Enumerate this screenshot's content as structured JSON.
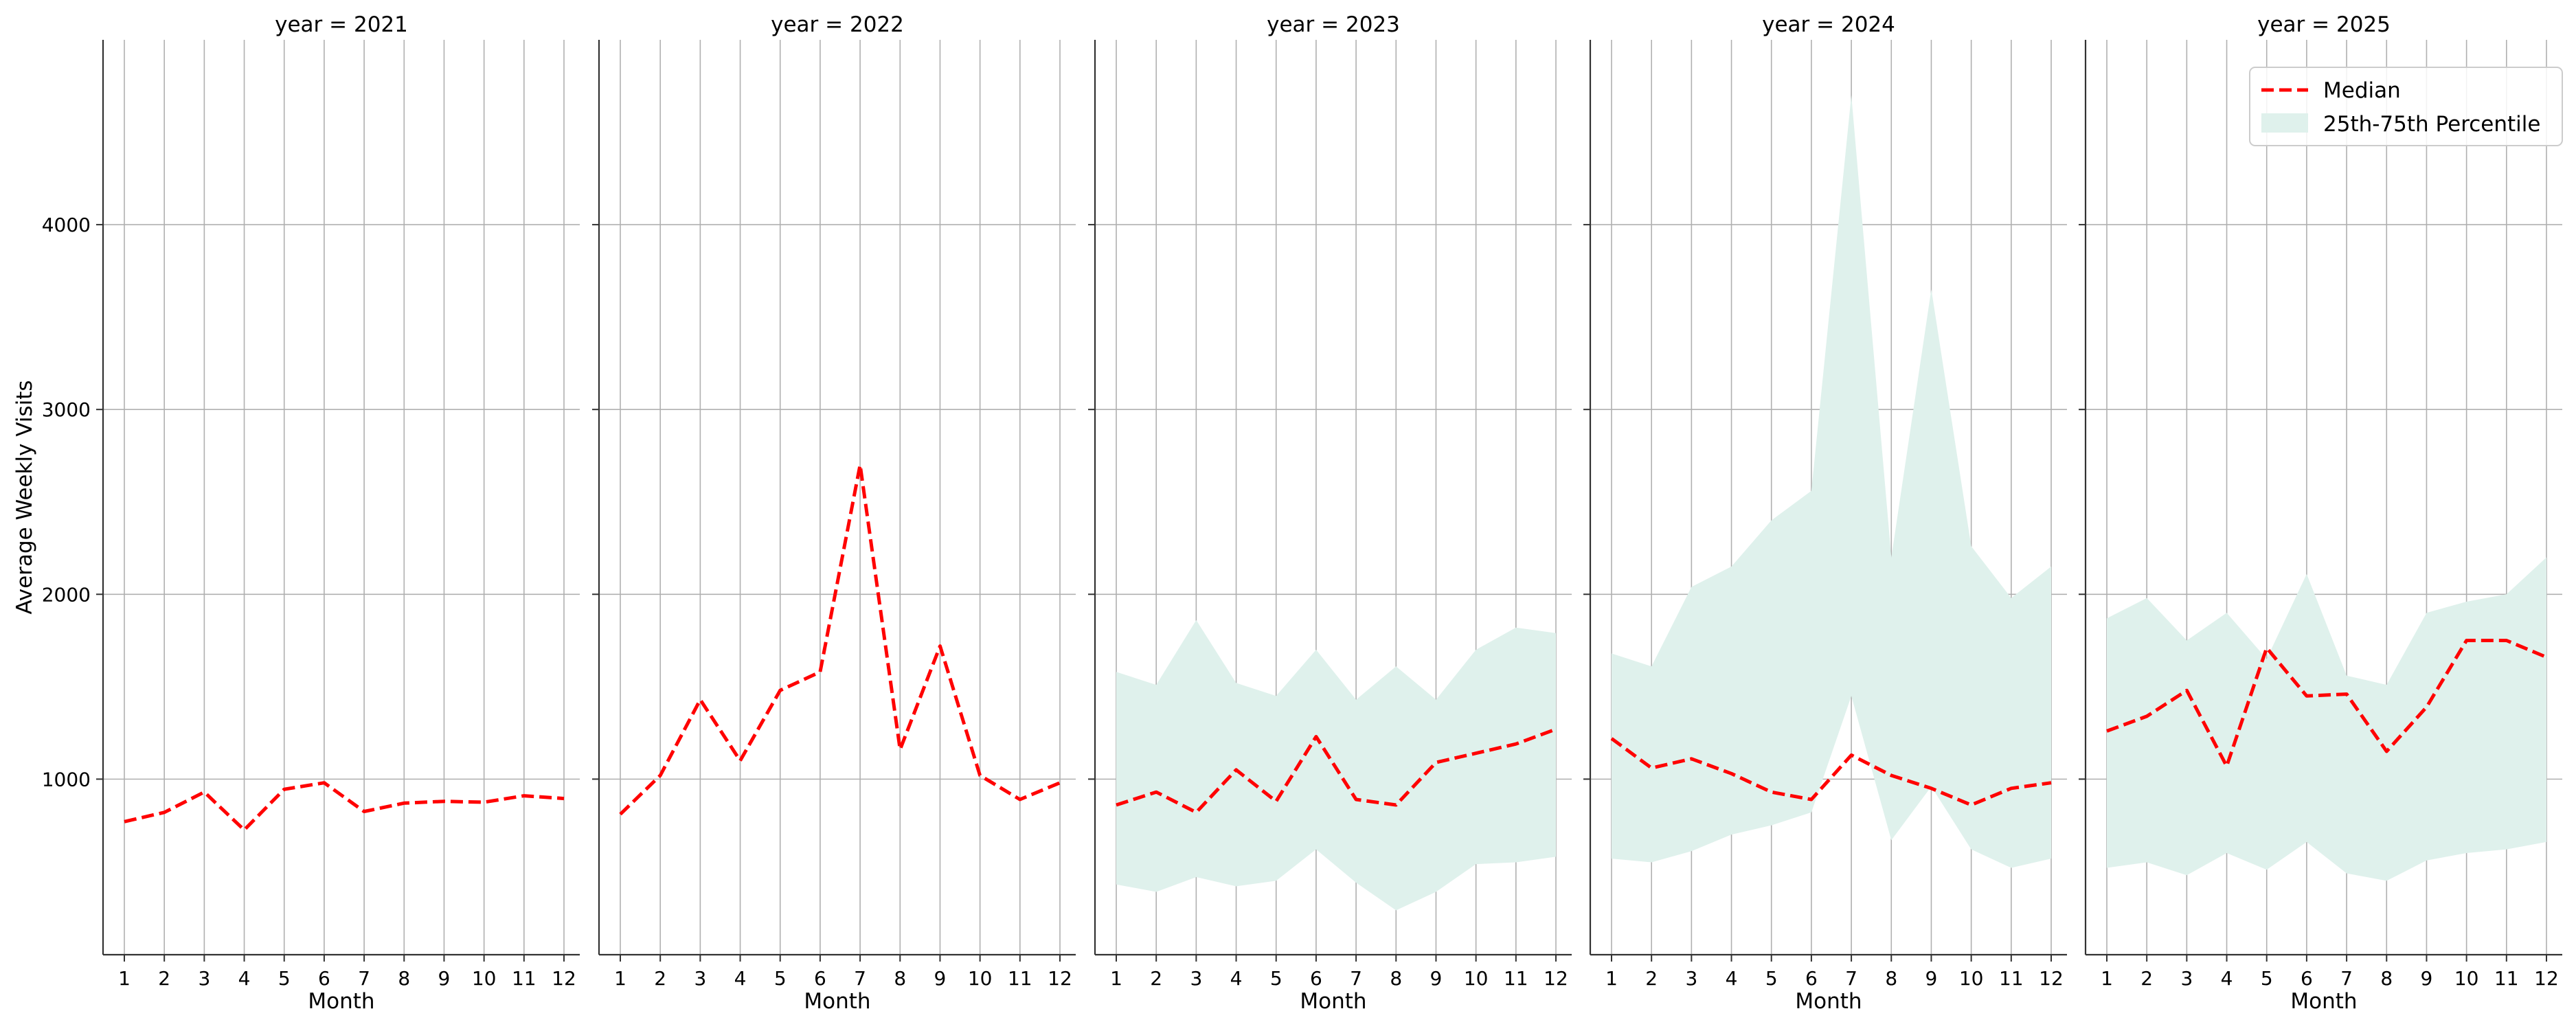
{
  "chart_data": {
    "type": "line",
    "ylabel": "Average Weekly Visits",
    "xlabel": "Month",
    "x": [
      1,
      2,
      3,
      4,
      5,
      6,
      7,
      8,
      9,
      10,
      11,
      12
    ],
    "ylim": [
      50,
      5000
    ],
    "yticks": [
      1000,
      2000,
      3000,
      4000
    ],
    "grid": true,
    "legend": {
      "placement": "top-right",
      "entries": [
        {
          "label": "Median",
          "color": "#ff0000",
          "style": "dashed"
        },
        {
          "label": "25th-75th Percentile",
          "color": "#dff1ec",
          "style": "band"
        }
      ]
    },
    "colors": {
      "median": "#ff0000",
      "band": "#dff1ec",
      "grid": "#b0b0b0",
      "axis": "#333333"
    },
    "panels": [
      {
        "title": "year = 2021",
        "median": [
          770,
          820,
          930,
          725,
          945,
          980,
          825,
          870,
          880,
          875,
          910,
          895
        ],
        "p25": null,
        "p75": null
      },
      {
        "title": "year = 2022",
        "median": [
          810,
          1020,
          1430,
          1100,
          1480,
          1580,
          2700,
          1160,
          1720,
          1020,
          890,
          980
        ],
        "p25": null,
        "p75": null
      },
      {
        "title": "year = 2023",
        "median": [
          860,
          930,
          820,
          1050,
          880,
          1230,
          890,
          860,
          1090,
          1140,
          1190,
          1270
        ],
        "p25": [
          430,
          390,
          470,
          420,
          450,
          620,
          440,
          290,
          390,
          540,
          550,
          580
        ],
        "p75": [
          1580,
          1510,
          1860,
          1520,
          1450,
          1700,
          1430,
          1610,
          1430,
          1700,
          1820,
          1790
        ]
      },
      {
        "title": "year = 2024",
        "median": [
          1220,
          1060,
          1110,
          1030,
          930,
          890,
          1130,
          1020,
          950,
          860,
          950,
          980
        ],
        "p25": [
          570,
          550,
          610,
          700,
          750,
          820,
          1450,
          670,
          960,
          620,
          520,
          570
        ],
        "p75": [
          1680,
          1610,
          2040,
          2150,
          2400,
          2560,
          4700,
          2200,
          3650,
          2260,
          1980,
          2150
        ]
      },
      {
        "title": "year = 2025",
        "median": [
          1260,
          1340,
          1480,
          1070,
          1710,
          1450,
          1460,
          1150,
          1390,
          1750,
          1750,
          1660
        ],
        "p25": [
          520,
          550,
          480,
          600,
          510,
          660,
          490,
          450,
          560,
          600,
          620,
          660
        ],
        "p75": [
          1870,
          1980,
          1750,
          1900,
          1650,
          2110,
          1560,
          1510,
          1900,
          1960,
          2000,
          2200
        ]
      }
    ]
  }
}
